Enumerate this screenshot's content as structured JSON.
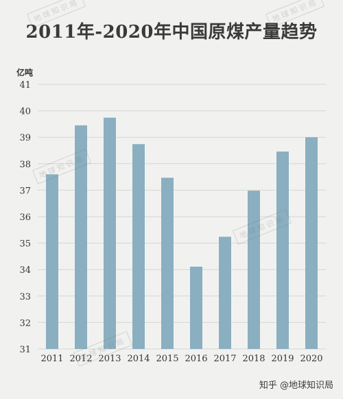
{
  "title": "2011年-2020年中国原煤产量趋势",
  "watermark": "地球知识局",
  "source": "知乎 @地球知识局",
  "colors": {
    "bar": "#8aafc0",
    "grid": "#d4d6d3",
    "background": "#f1f2f0"
  },
  "chart_data": {
    "type": "bar",
    "title": "2011年-2020年中国原煤产量趋势",
    "ylabel": "亿吨",
    "xlabel": "",
    "ylim": [
      31,
      41
    ],
    "yticks": [
      31,
      32,
      33,
      34,
      35,
      36,
      37,
      38,
      39,
      40,
      41
    ],
    "categories": [
      "2011",
      "2012",
      "2013",
      "2014",
      "2015",
      "2016",
      "2017",
      "2018",
      "2019",
      "2020"
    ],
    "values": [
      37.6,
      39.45,
      39.74,
      38.74,
      37.47,
      34.11,
      35.24,
      36.98,
      38.46,
      39.0
    ],
    "grid": true
  }
}
